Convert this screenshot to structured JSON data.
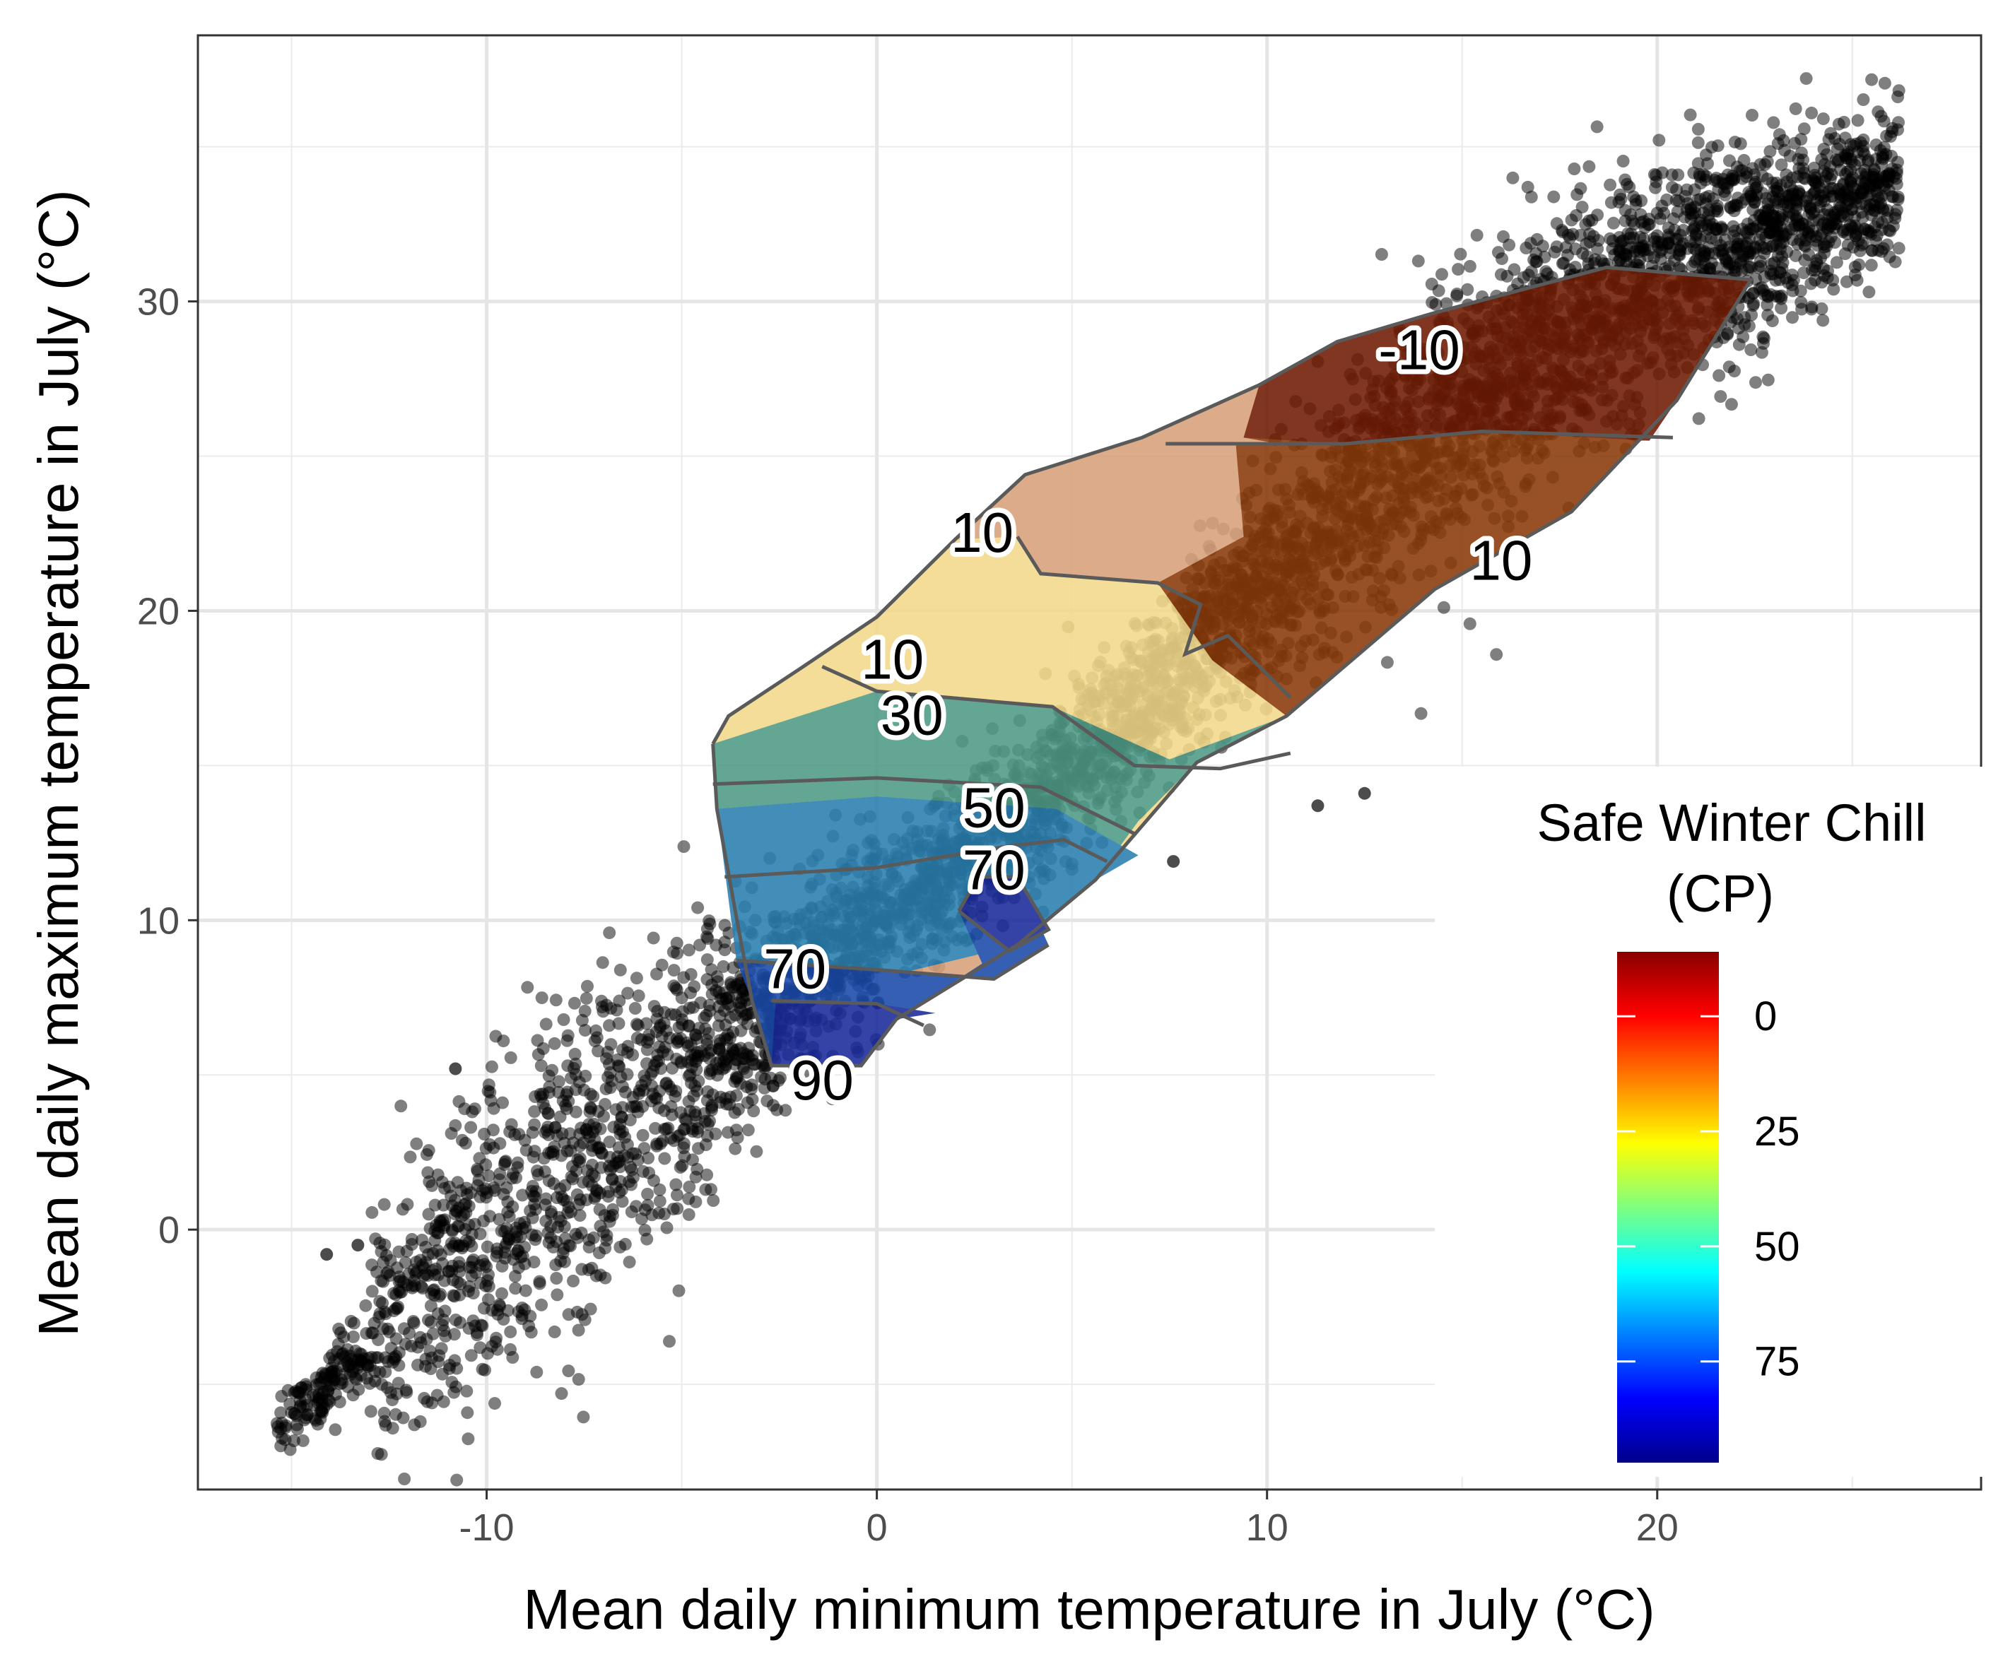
{
  "chart_data": {
    "type": "scatter",
    "title": "",
    "xlabel": "Mean daily minimum temperature in July (°C)",
    "ylabel": "Mean daily maximum temperature in July (°C)",
    "xlim": [
      -17.4,
      28.3
    ],
    "ylim": [
      -8.4,
      38.6
    ],
    "x_ticks": [
      -10,
      0,
      10,
      20
    ],
    "x_tick_labels": [
      "-10",
      "0",
      "10",
      "20"
    ],
    "y_ticks": [
      0,
      10,
      20,
      30
    ],
    "y_tick_labels": [
      "0",
      "10",
      "20",
      "30"
    ],
    "grid": true,
    "scatter": {
      "color": "#000000",
      "opacity": 0.5,
      "description_points": "dense point cloud along the diagonal band",
      "band_centre": [
        [
          -15.4,
          -6.6
        ],
        [
          -12,
          -2.6
        ],
        [
          -8,
          1.8
        ],
        [
          -4,
          6
        ],
        [
          0,
          10
        ],
        [
          4,
          13.8
        ],
        [
          8,
          18.4
        ],
        [
          12,
          23.4
        ],
        [
          16,
          27.6
        ],
        [
          20,
          30.8
        ],
        [
          24,
          32.8
        ],
        [
          26.2,
          34
        ]
      ],
      "outliers": [
        [
          11.3,
          13.7
        ],
        [
          12.5,
          14.1
        ],
        [
          7.6,
          11.9
        ],
        [
          -14.1,
          -0.8
        ],
        [
          -13.3,
          -0.5
        ],
        [
          -10.8,
          5.2
        ]
      ]
    },
    "contour_region": {
      "xlim": [
        -4.2,
        22.4
      ],
      "ylim": [
        5.3,
        31.2
      ],
      "bands": [
        {
          "range": "< -10",
          "color": "#6f1b03"
        },
        {
          "range": "-10 to 10",
          "color": "#d8a07a"
        },
        {
          "range": "10 to 30",
          "color": "#f2d98a"
        },
        {
          "range": "30 to 50",
          "color": "#4f9a86"
        },
        {
          "range": "50 to 70",
          "color": "#2a7fb0"
        },
        {
          "range": "70 to 90",
          "color": "#1a4aa8"
        },
        {
          "range": "> 90",
          "color": "#1a2a9a"
        }
      ],
      "contour_labels": [
        {
          "text": "-10",
          "x": 13.9,
          "y": 28.4
        },
        {
          "text": "10",
          "x": 2.7,
          "y": 22.5
        },
        {
          "text": "10",
          "x": 16.0,
          "y": 21.6
        },
        {
          "text": "10",
          "x": 0.4,
          "y": 18.4
        },
        {
          "text": "30",
          "x": 0.9,
          "y": 16.6
        },
        {
          "text": "50",
          "x": 3.0,
          "y": 13.6
        },
        {
          "text": "70",
          "x": 3.0,
          "y": 11.6
        },
        {
          "text": "70",
          "x": -2.1,
          "y": 8.4
        },
        {
          "text": "90",
          "x": -1.4,
          "y": 4.8
        }
      ]
    },
    "legend": {
      "title_line1": "Safe Winter Chill",
      "title_line2": "(CP)",
      "placement": "bottom-right inside",
      "value_range": [
        -14,
        97
      ],
      "ticks": [
        0,
        25,
        50,
        75
      ],
      "tick_labels": [
        "0",
        "25",
        "50",
        "75"
      ],
      "colors": [
        "#8b0000",
        "#ff0000",
        "#ff7f00",
        "#ffff00",
        "#7fff7f",
        "#00ffff",
        "#007fff",
        "#0000ff",
        "#00008b"
      ]
    }
  }
}
